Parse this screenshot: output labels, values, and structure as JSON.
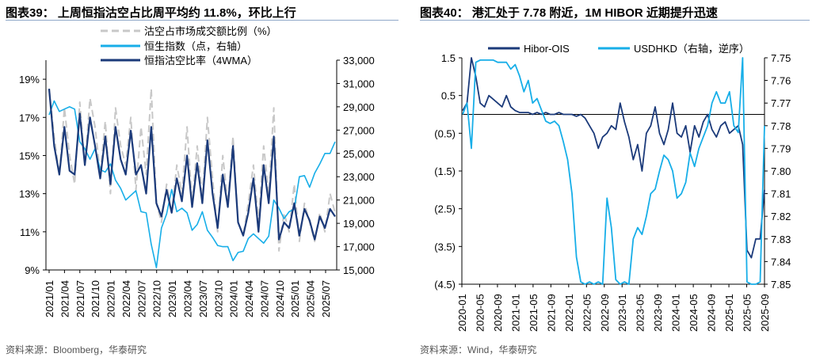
{
  "left_panel": {
    "title": "图表39：  上周恒指沽空占比周平均约 11.8%，环比上行",
    "source": "资料来源：Bloomberg，华泰研究"
  },
  "right_panel": {
    "title": "图表40：  港汇处于 7.78 附近，1M HIBOR 近期提升迅速",
    "source": "资料来源：Wind，华泰研究"
  },
  "colors": {
    "navy": "#1b3a7a",
    "light_blue": "#17aee8",
    "gray": "#c8c8c8",
    "rule": "#8fa8c8"
  },
  "chart_data": [
    {
      "type": "line",
      "legend": [
        "沽空占市场成交额比例（%）",
        "恒生指数（点，右轴）",
        "恒指沽空比率（4WMA）"
      ],
      "legend_placement": "top-center",
      "x_ticks": [
        "2021/01",
        "2021/04",
        "2021/07",
        "2021/10",
        "2022/01",
        "2022/04",
        "2022/07",
        "2022/10",
        "2023/01",
        "2023/04",
        "2023/07",
        "2023/10",
        "2024/01",
        "2024/04",
        "2024/07",
        "2024/10",
        "2025/01",
        "2025/04",
        "2025/07"
      ],
      "x_start": "2021/01",
      "x_step": "month",
      "y_left": {
        "ticks": [
          "9%",
          "11%",
          "13%",
          "15%",
          "17%",
          "19%"
        ],
        "range": [
          9,
          20
        ]
      },
      "y_right": {
        "ticks": [
          "15,000",
          "17,000",
          "19,000",
          "21,000",
          "23,000",
          "25,000",
          "27,000",
          "29,000",
          "31,000",
          "33,000"
        ],
        "range": [
          15000,
          33000
        ]
      },
      "series": [
        {
          "name": "沽空占市场成交额比例（%）",
          "axis": "left",
          "style": "dashed",
          "values": [
            18.5,
            16.0,
            14.0,
            17.5,
            15.0,
            13.5,
            17.8,
            14.5,
            18.0,
            16.5,
            14.0,
            16.8,
            13.0,
            17.5,
            15.5,
            14.5,
            17.0,
            13.2,
            16.5,
            14.0,
            18.5,
            12.5,
            11.5,
            13.5,
            12.0,
            14.5,
            13.0,
            16.5,
            12.5,
            15.5,
            12.8,
            17.0,
            13.8,
            11.0,
            15.0,
            12.5,
            16.0,
            11.5,
            10.8,
            12.5,
            14.5,
            11.5,
            15.5,
            13.0,
            17.5,
            10.0,
            12.0,
            11.0,
            13.5,
            10.5,
            12.5,
            11.5,
            10.5,
            12.0,
            11.0,
            13.0,
            12.0
          ]
        },
        {
          "name": "恒生指数（点，右轴）",
          "axis": "right",
          "values": [
            28300,
            29500,
            28600,
            28800,
            29000,
            28800,
            26000,
            25400,
            24500,
            25400,
            23600,
            23400,
            24100,
            22700,
            22000,
            21000,
            21400,
            21800,
            20000,
            19900,
            17200,
            15200,
            18600,
            19800,
            21900,
            20000,
            20300,
            19900,
            18400,
            18900,
            20000,
            18400,
            17800,
            17100,
            17000,
            17000,
            15800,
            16500,
            16600,
            17700,
            18100,
            17700,
            17300,
            17900,
            21000,
            20300,
            19400,
            20000,
            20200,
            23000,
            23100,
            22100,
            23300,
            24100,
            25000,
            25000,
            26000
          ]
        },
        {
          "name": "恒指沽空比率（4WMA）",
          "axis": "left",
          "values": [
            18.5,
            15.5,
            14.0,
            16.5,
            14.2,
            14.0,
            17.2,
            14.5,
            17.0,
            15.5,
            13.8,
            16.0,
            13.5,
            16.5,
            14.8,
            14.0,
            16.3,
            14.0,
            14.5,
            13.0,
            16.5,
            12.5,
            11.8,
            13.2,
            12.0,
            13.8,
            12.6,
            15.0,
            12.3,
            14.6,
            12.5,
            15.8,
            13.0,
            11.2,
            14.0,
            12.3,
            15.5,
            11.5,
            10.8,
            12.0,
            13.8,
            11.0,
            14.5,
            12.5,
            16.0,
            10.6,
            11.5,
            11.2,
            12.5,
            10.8,
            12.2,
            11.6,
            10.6,
            11.8,
            11.2,
            12.2,
            11.8
          ]
        }
      ]
    },
    {
      "type": "line",
      "legend": [
        "Hibor-OIS",
        "USDHKD（右轴，逆序）"
      ],
      "legend_placement": "top-center",
      "x_ticks": [
        "2020-01",
        "2020-05",
        "2020-09",
        "2021-01",
        "2021-05",
        "2021-09",
        "2022-01",
        "2022-05",
        "2022-09",
        "2023-01",
        "2023-05",
        "2023-09",
        "2024-01",
        "2024-05",
        "2024-09",
        "2025-01",
        "2025-05",
        "2025-09"
      ],
      "x_start": "2020-01",
      "x_step": "month",
      "y_left": {
        "ticks": [
          "1.5",
          "0.5",
          "(0.5)",
          "(1.5)",
          "(2.5)",
          "(3.5)",
          "(4.5)"
        ],
        "range": [
          -4.5,
          1.5
        ]
      },
      "y_right": {
        "ticks": [
          "7.75",
          "7.76",
          "7.77",
          "7.78",
          "7.79",
          "7.80",
          "7.81",
          "7.82",
          "7.83",
          "7.84",
          "7.85"
        ],
        "range": [
          7.75,
          7.85
        ],
        "reversed": true
      },
      "series": [
        {
          "name": "Hibor-OIS",
          "axis": "left",
          "values": [
            0.1,
            0.3,
            1.5,
            1.0,
            0.3,
            0.2,
            0.5,
            0.4,
            0.3,
            0.2,
            0.5,
            0.2,
            0.1,
            0.05,
            0.05,
            0.05,
            0.0,
            0.05,
            0.0,
            0.05,
            0.0,
            0.0,
            0.05,
            0.0,
            0.0,
            0.0,
            -0.05,
            0.0,
            -0.1,
            -0.3,
            -0.5,
            -0.9,
            -0.6,
            -0.5,
            -0.3,
            -0.4,
            0.3,
            -0.2,
            -0.6,
            -1.2,
            -0.8,
            -1.5,
            -0.5,
            -0.3,
            0.2,
            -0.5,
            -0.8,
            -0.4,
            0.3,
            -0.5,
            -0.6,
            -0.3,
            -1.0,
            -0.3,
            -0.6,
            -0.2,
            0.0,
            -0.4,
            -0.6,
            -0.3,
            -0.2,
            -0.5,
            -0.4,
            -0.3,
            -0.8,
            -3.6,
            -3.8,
            -3.3,
            -3.3,
            -2.0
          ]
        },
        {
          "name": "USDHKD（右轴，逆序）",
          "axis": "right",
          "values": [
            7.775,
            7.77,
            7.79,
            7.752,
            7.751,
            7.751,
            7.751,
            7.751,
            7.752,
            7.752,
            7.752,
            7.755,
            7.753,
            7.758,
            7.765,
            7.76,
            7.77,
            7.768,
            7.773,
            7.778,
            7.779,
            7.778,
            7.78,
            7.787,
            7.795,
            7.81,
            7.838,
            7.849,
            7.85,
            7.849,
            7.85,
            7.849,
            7.85,
            7.812,
            7.825,
            7.848,
            7.85,
            7.849,
            7.85,
            7.83,
            7.825,
            7.828,
            7.82,
            7.81,
            7.808,
            7.8,
            7.793,
            7.795,
            7.8,
            7.812,
            7.81,
            7.805,
            7.792,
            7.798,
            7.79,
            7.785,
            7.78,
            7.77,
            7.765,
            7.77,
            7.77,
            7.765,
            7.78,
            7.783,
            7.75,
            7.849,
            7.85,
            7.85,
            7.849,
            7.78
          ]
        }
      ]
    }
  ]
}
